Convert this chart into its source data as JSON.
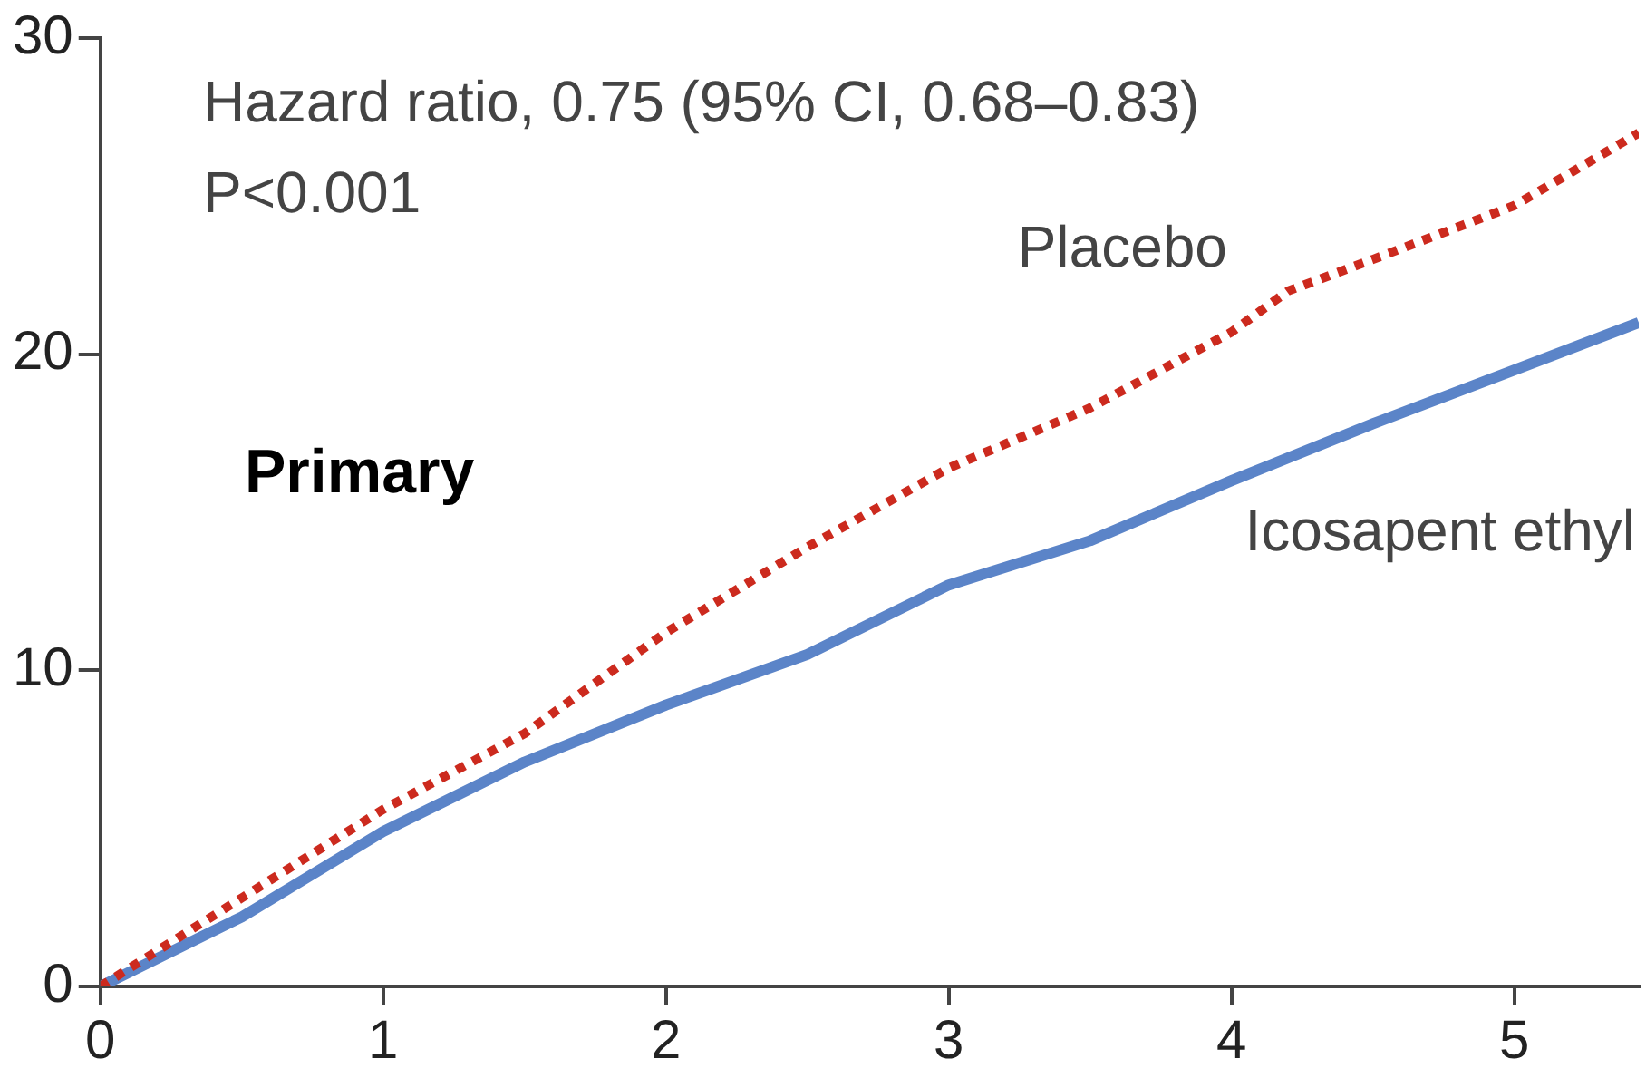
{
  "chart_data": {
    "type": "line",
    "annotations": [
      "Hazard ratio, 0.75 (95% CI, 0.68–0.83)",
      "P<0.001",
      "Primary"
    ],
    "xlim": [
      0,
      5.44
    ],
    "xticks": [
      0,
      1,
      2,
      3,
      4,
      5
    ],
    "ylim": [
      0,
      30
    ],
    "yticks": [
      0,
      10,
      20,
      30
    ],
    "grid": false,
    "legend": false,
    "marker": "none",
    "series": [
      {
        "name": "Placebo",
        "color": "#cc2a1e",
        "line_style": "dotted",
        "x": [
          0,
          0.5,
          1,
          1.5,
          2,
          2.5,
          3,
          3.5,
          4,
          4.2,
          4.5,
          5,
          5.44
        ],
        "values": [
          0,
          2.8,
          5.6,
          8.0,
          11.2,
          13.9,
          16.4,
          18.3,
          20.7,
          22.0,
          23.0,
          24.7,
          27.0
        ]
      },
      {
        "name": "Icosapent ethyl",
        "color": "#5b84c8",
        "line_style": "solid",
        "x": [
          0,
          0.5,
          1,
          1.5,
          2,
          2.5,
          3,
          3.5,
          4,
          4.5,
          5,
          5.44
        ],
        "values": [
          0,
          2.2,
          4.9,
          7.1,
          8.9,
          10.5,
          12.7,
          14.1,
          16.0,
          17.8,
          19.5,
          21.0
        ]
      }
    ]
  }
}
